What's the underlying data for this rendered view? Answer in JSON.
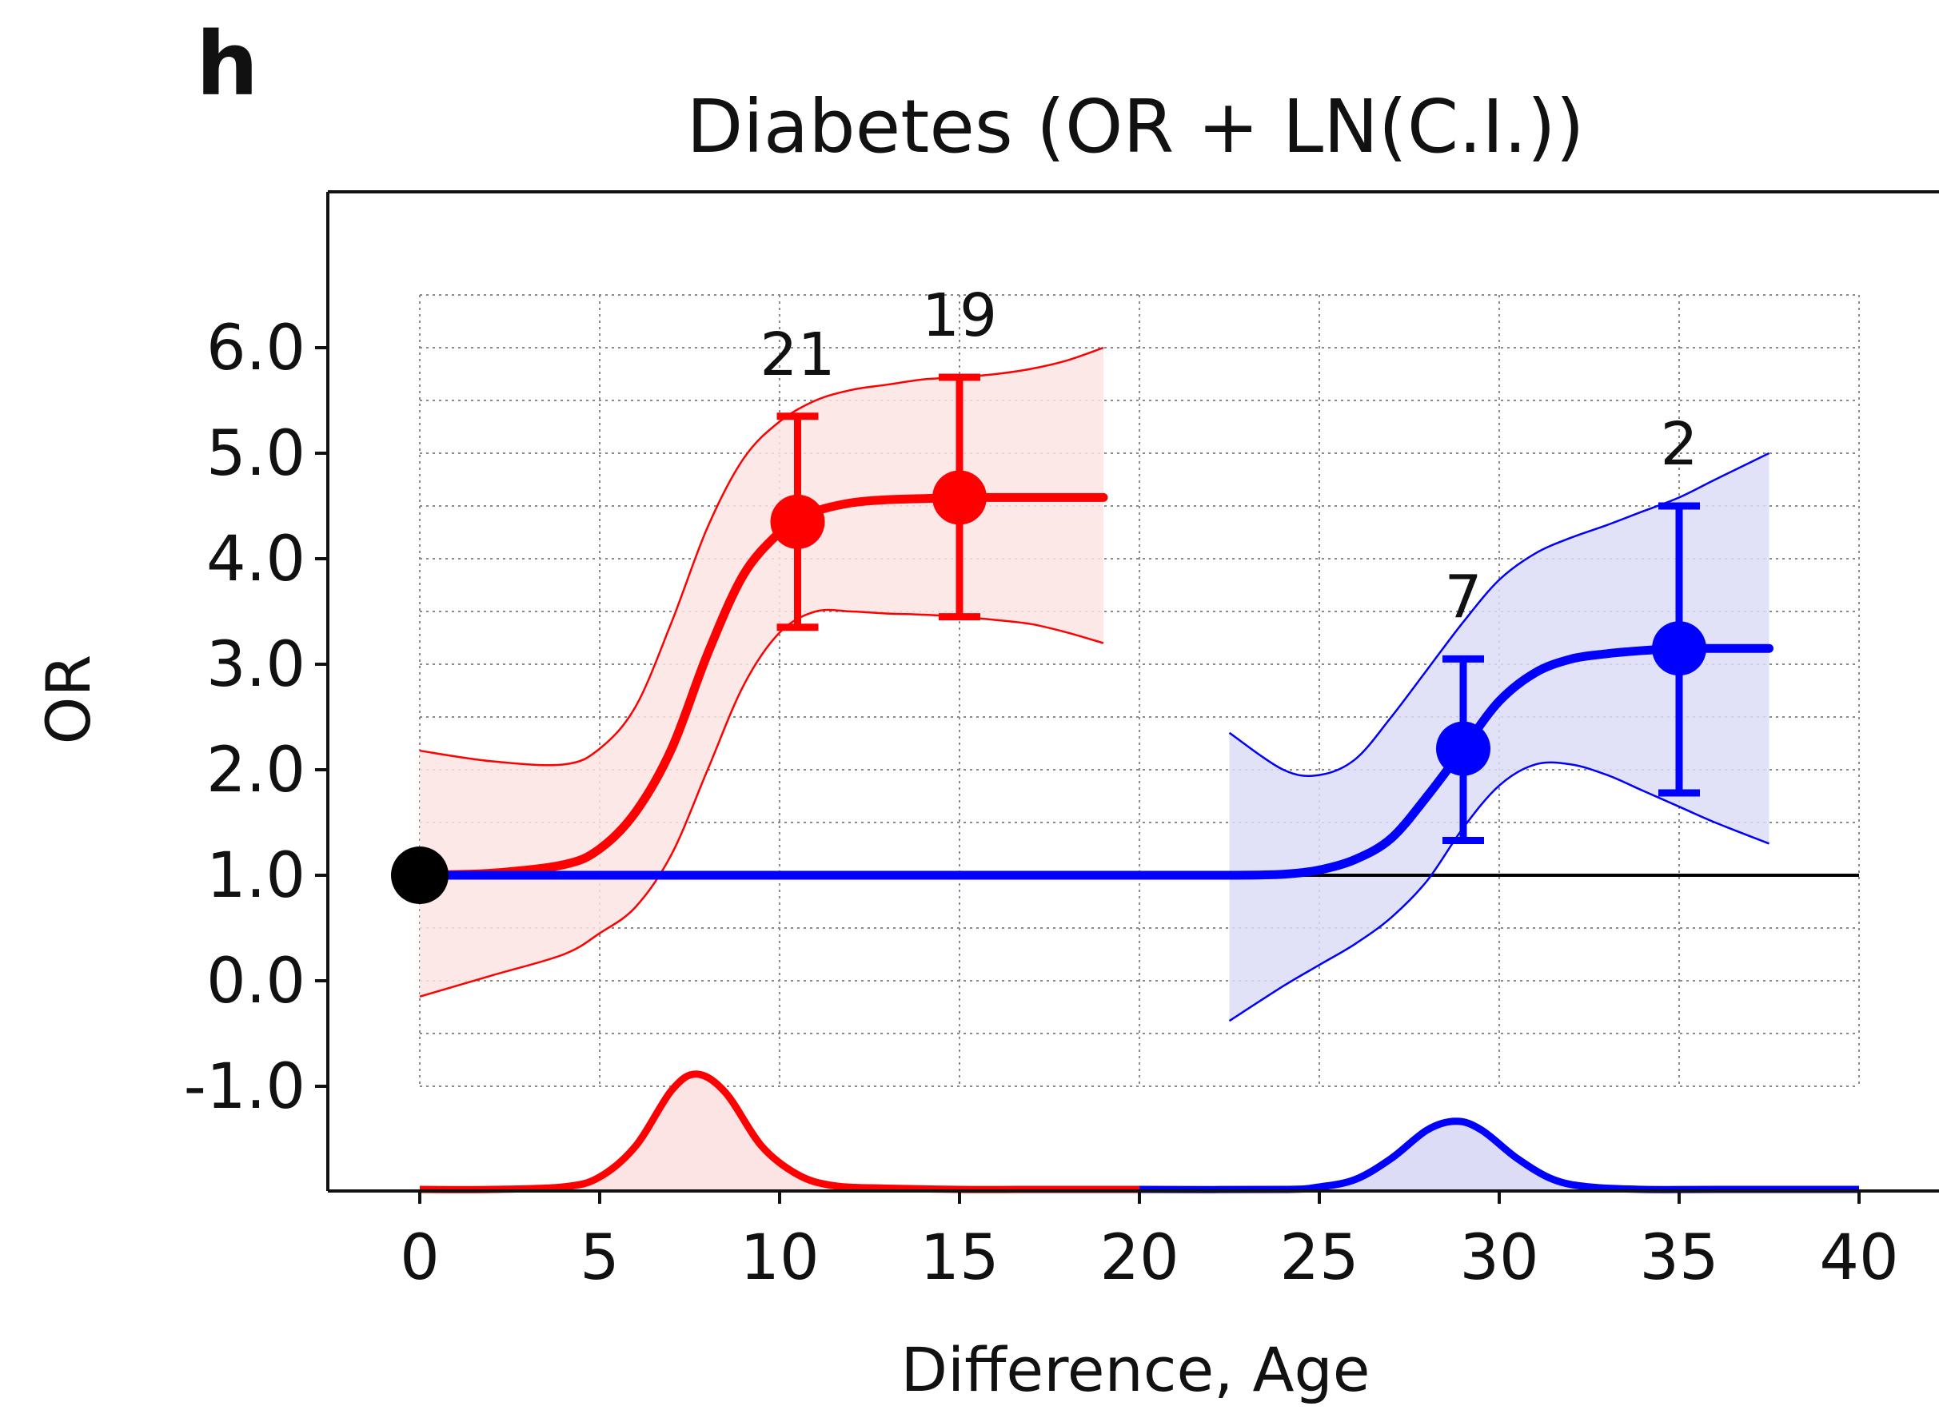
{
  "panel_label": "h",
  "chart_data": {
    "type": "line",
    "title": "Diabetes (OR + LN(C.I.))",
    "xlabel": "Difference, Age",
    "ylabel": "OR",
    "xlim": [
      -5,
      42
    ],
    "ylim": [
      -2.0,
      7.5
    ],
    "x_ticks": [
      0,
      5,
      10,
      15,
      20,
      25,
      30,
      35,
      40
    ],
    "y_ticks": [
      6.0,
      5.0,
      4.0,
      3.0,
      2.0,
      1.0,
      0.0,
      -1.0
    ],
    "y_tick_labels": [
      "6.0",
      "5.0",
      "4.0",
      "3.0",
      "2.0",
      "1.0",
      "0.0",
      "-1.0"
    ],
    "grid": true,
    "grid_x_range": [
      0,
      40
    ],
    "grid_y_range": [
      -1.0,
      6.5
    ],
    "reference_line": {
      "y": 1.0,
      "x_range": [
        0,
        40
      ],
      "color": "#000000"
    },
    "origin_point": {
      "x": 0,
      "y": 1.0,
      "color": "#000000"
    },
    "series": [
      {
        "color": "#ff0000",
        "fill_color": "#fde4e4",
        "curve": {
          "x": [
            0,
            2,
            4,
            5,
            6,
            7,
            8,
            9,
            10,
            10.5,
            11,
            12,
            13,
            14,
            15,
            16,
            17,
            18,
            19
          ],
          "y": [
            1.0,
            1.02,
            1.1,
            1.25,
            1.6,
            2.2,
            3.1,
            3.85,
            4.25,
            4.35,
            4.45,
            4.53,
            4.56,
            4.57,
            4.58,
            4.58,
            4.58,
            4.58,
            4.58
          ]
        },
        "ci_upper": {
          "x": [
            0,
            2,
            4,
            5,
            6,
            7,
            8,
            9,
            10,
            11,
            12,
            13,
            14,
            15,
            16,
            17,
            18,
            19
          ],
          "y": [
            2.18,
            2.08,
            2.05,
            2.2,
            2.6,
            3.4,
            4.3,
            4.95,
            5.3,
            5.5,
            5.6,
            5.65,
            5.7,
            5.72,
            5.75,
            5.8,
            5.88,
            6.0
          ]
        },
        "ci_lower": {
          "x": [
            0,
            2,
            4,
            5,
            6,
            7,
            8,
            9,
            10,
            11,
            12,
            13,
            14,
            15,
            16,
            17,
            18,
            19
          ],
          "y": [
            -0.15,
            0.05,
            0.25,
            0.45,
            0.7,
            1.2,
            2.0,
            2.8,
            3.3,
            3.5,
            3.5,
            3.48,
            3.47,
            3.45,
            3.42,
            3.38,
            3.3,
            3.2
          ]
        },
        "points": [
          {
            "x": 10.5,
            "y": 4.35,
            "ci_low": 3.35,
            "ci_high": 5.35,
            "label": "21"
          },
          {
            "x": 15,
            "y": 4.58,
            "ci_low": 3.45,
            "ci_high": 5.72,
            "label": "19"
          }
        ],
        "distribution": {
          "x": [
            0,
            2,
            4,
            5,
            6,
            7,
            7.7,
            8.5,
            9.5,
            10.5,
            11.5,
            13,
            15,
            17,
            20
          ],
          "height": [
            0.0,
            0.0,
            0.02,
            0.1,
            0.35,
            0.8,
            0.93,
            0.78,
            0.35,
            0.12,
            0.03,
            0.01,
            0.0,
            0.0,
            0.0
          ]
        }
      },
      {
        "color": "#0000ff",
        "fill_color": "#dcdcf7",
        "curve": {
          "x": [
            0,
            5,
            10,
            15,
            20,
            22.5,
            24,
            25,
            26,
            27,
            28,
            29,
            30,
            31,
            32,
            33,
            34,
            35,
            36,
            37.5
          ],
          "y": [
            1.0,
            1.0,
            1.0,
            1.0,
            1.0,
            1.0,
            1.01,
            1.05,
            1.15,
            1.35,
            1.75,
            2.2,
            2.65,
            2.92,
            3.05,
            3.1,
            3.13,
            3.15,
            3.15,
            3.15
          ]
        },
        "ci_upper": {
          "x": [
            22.5,
            24,
            25,
            26,
            27,
            28,
            29,
            30,
            31,
            32,
            33,
            34,
            35,
            36,
            37.5
          ],
          "y": [
            2.35,
            2.0,
            1.95,
            2.1,
            2.5,
            2.95,
            3.4,
            3.8,
            4.05,
            4.2,
            4.32,
            4.45,
            4.58,
            4.75,
            5.0
          ]
        },
        "ci_lower": {
          "x": [
            22.5,
            24,
            25,
            26,
            27,
            28,
            29,
            30,
            31,
            32,
            33,
            34,
            35,
            36,
            37.5
          ],
          "y": [
            -0.38,
            -0.05,
            0.15,
            0.35,
            0.6,
            0.95,
            1.45,
            1.85,
            2.05,
            2.05,
            1.95,
            1.8,
            1.65,
            1.5,
            1.3
          ]
        },
        "points": [
          {
            "x": 29,
            "y": 2.2,
            "ci_low": 1.33,
            "ci_high": 3.05,
            "label": "7"
          },
          {
            "x": 35,
            "y": 3.15,
            "ci_low": 1.78,
            "ci_high": 4.5,
            "label": "2"
          }
        ],
        "distribution": {
          "x": [
            20,
            24,
            25,
            26,
            27,
            28,
            28.8,
            29.5,
            30.5,
            31.5,
            32.5,
            34,
            36,
            40
          ],
          "height": [
            0.0,
            0.0,
            0.02,
            0.08,
            0.25,
            0.48,
            0.55,
            0.48,
            0.25,
            0.08,
            0.02,
            0.0,
            0.0,
            0.0
          ]
        }
      }
    ]
  }
}
